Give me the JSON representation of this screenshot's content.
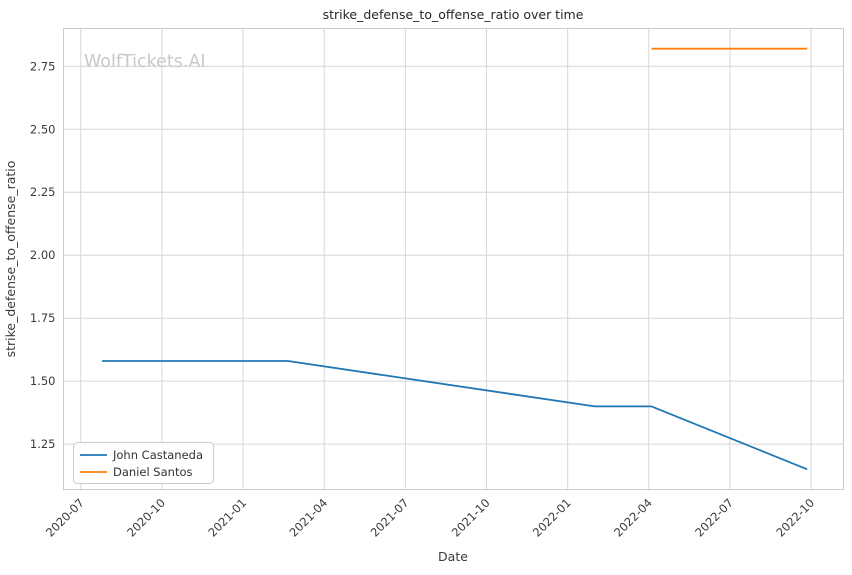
{
  "figure": {
    "watermark": "WolfTickets.AI"
  },
  "chart_data": {
    "type": "line",
    "title": "strike_defense_to_offense_ratio over time",
    "xlabel": "Date",
    "ylabel": "strike_defense_to_offense_ratio",
    "grid": true,
    "legend_position": "lower left",
    "x_tick_labels": [
      "2020-07",
      "2020-10",
      "2021-01",
      "2021-04",
      "2021-07",
      "2021-10",
      "2022-01",
      "2022-04",
      "2022-07",
      "2022-10"
    ],
    "y_ticks": [
      {
        "value": 1.25,
        "label": "1.25"
      },
      {
        "value": 1.5,
        "label": "1.50"
      },
      {
        "value": 1.75,
        "label": "1.75"
      },
      {
        "value": 2.0,
        "label": "2.00"
      },
      {
        "value": 2.25,
        "label": "2.25"
      },
      {
        "value": 2.5,
        "label": "2.50"
      },
      {
        "value": 2.75,
        "label": "2.75"
      }
    ],
    "xlim_dates": [
      "2020-06-12",
      "2022-11-07"
    ],
    "ylim": [
      1.07,
      2.9
    ],
    "series": [
      {
        "name": "John Castaneda",
        "color": "#1f77b4",
        "points": [
          {
            "date": "2020-07-25",
            "value": 1.58
          },
          {
            "date": "2021-02-21",
            "value": 1.58
          },
          {
            "date": "2022-02-01",
            "value": 1.4
          },
          {
            "date": "2022-04-04",
            "value": 1.4
          },
          {
            "date": "2022-09-27",
            "value": 1.15
          }
        ]
      },
      {
        "name": "Daniel Santos",
        "color": "#ff7f0e",
        "points": [
          {
            "date": "2022-04-04",
            "value": 2.82
          },
          {
            "date": "2022-09-27",
            "value": 2.82
          }
        ]
      }
    ]
  }
}
